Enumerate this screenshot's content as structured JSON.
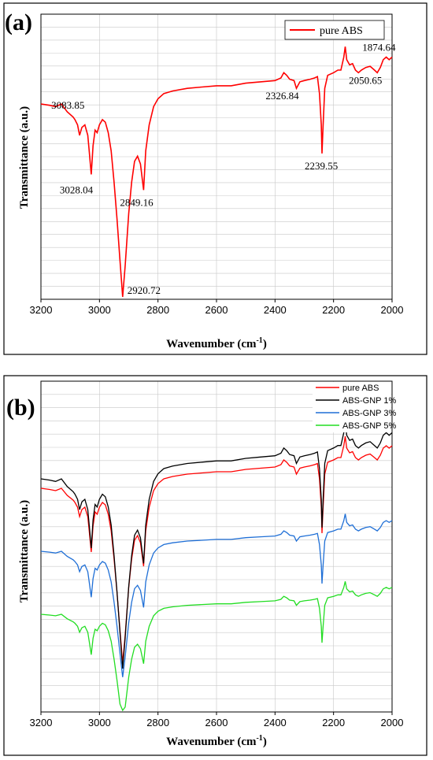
{
  "chart_data": [
    {
      "type": "line",
      "panel_label": "(a)",
      "xlabel": "Wavenumber (cm",
      "xlabel_sup": "-1",
      "xlabel_end": ")",
      "ylabel": "Transmittance (a.u.)",
      "xlim": [
        3200,
        2000
      ],
      "x_ticks": [
        "3200",
        "3000",
        "2800",
        "2600",
        "2400",
        "2200",
        "2000"
      ],
      "legend_position": "top-right",
      "grid": true,
      "series": [
        {
          "name": "pure ABS",
          "color": "#ff0000",
          "points": [
            [
              3200,
              0.74
            ],
            [
              3170,
              0.735
            ],
            [
              3150,
              0.73
            ],
            [
              3130,
              0.74
            ],
            [
              3110,
              0.71
            ],
            [
              3090,
              0.69
            ],
            [
              3083.85,
              0.68
            ],
            [
              3075,
              0.66
            ],
            [
              3068,
              0.62
            ],
            [
              3060,
              0.65
            ],
            [
              3050,
              0.66
            ],
            [
              3040,
              0.62
            ],
            [
              3035,
              0.56
            ],
            [
              3028.04,
              0.47
            ],
            [
              3022,
              0.58
            ],
            [
              3015,
              0.64
            ],
            [
              3008,
              0.63
            ],
            [
              3000,
              0.66
            ],
            [
              2990,
              0.68
            ],
            [
              2980,
              0.67
            ],
            [
              2970,
              0.63
            ],
            [
              2960,
              0.56
            ],
            [
              2950,
              0.44
            ],
            [
              2940,
              0.3
            ],
            [
              2930,
              0.14
            ],
            [
              2920.72,
              0.0
            ],
            [
              2912,
              0.12
            ],
            [
              2900,
              0.32
            ],
            [
              2890,
              0.44
            ],
            [
              2880,
              0.52
            ],
            [
              2870,
              0.54
            ],
            [
              2860,
              0.51
            ],
            [
              2849.16,
              0.41
            ],
            [
              2842,
              0.56
            ],
            [
              2830,
              0.66
            ],
            [
              2815,
              0.73
            ],
            [
              2800,
              0.76
            ],
            [
              2780,
              0.78
            ],
            [
              2750,
              0.79
            ],
            [
              2700,
              0.8
            ],
            [
              2650,
              0.805
            ],
            [
              2600,
              0.81
            ],
            [
              2550,
              0.81
            ],
            [
              2500,
              0.82
            ],
            [
              2450,
              0.825
            ],
            [
              2400,
              0.83
            ],
            [
              2380,
              0.84
            ],
            [
              2370,
              0.86
            ],
            [
              2360,
              0.85
            ],
            [
              2350,
              0.835
            ],
            [
              2335,
              0.83
            ],
            [
              2326.84,
              0.8
            ],
            [
              2315,
              0.825
            ],
            [
              2300,
              0.83
            ],
            [
              2280,
              0.835
            ],
            [
              2265,
              0.84
            ],
            [
              2255,
              0.845
            ],
            [
              2248,
              0.78
            ],
            [
              2242,
              0.66
            ],
            [
              2239.55,
              0.55
            ],
            [
              2236,
              0.65
            ],
            [
              2230,
              0.8
            ],
            [
              2220,
              0.85
            ],
            [
              2200,
              0.86
            ],
            [
              2185,
              0.87
            ],
            [
              2175,
              0.87
            ],
            [
              2165,
              0.92
            ],
            [
              2160,
              0.96
            ],
            [
              2155,
              0.91
            ],
            [
              2145,
              0.89
            ],
            [
              2135,
              0.895
            ],
            [
              2125,
              0.87
            ],
            [
              2115,
              0.86
            ],
            [
              2105,
              0.87
            ],
            [
              2090,
              0.88
            ],
            [
              2075,
              0.885
            ],
            [
              2060,
              0.87
            ],
            [
              2050.65,
              0.86
            ],
            [
              2040,
              0.88
            ],
            [
              2030,
              0.91
            ],
            [
              2020,
              0.92
            ],
            [
              2010,
              0.91
            ],
            [
              2000,
              0.92
            ]
          ]
        }
      ],
      "annotations": [
        {
          "label": "3083.85",
          "x": 3083.85,
          "y": 0.68
        },
        {
          "label": "3028.04",
          "x": 3028.04,
          "y": 0.47
        },
        {
          "label": "2920.72",
          "x": 2920.72,
          "y": 0.0
        },
        {
          "label": "2849.16",
          "x": 2849.16,
          "y": 0.41
        },
        {
          "label": "2326.84",
          "x": 2326.84,
          "y": 0.8
        },
        {
          "label": "2239.55",
          "x": 2239.55,
          "y": 0.55
        },
        {
          "label": "2050.65",
          "x": 2050.65,
          "y": 0.86
        },
        {
          "label": "1874.64",
          "x": 2010,
          "y": 0.92
        }
      ]
    },
    {
      "type": "line",
      "panel_label": "(b)",
      "xlabel": "Wavenumber (cm",
      "xlabel_sup": "-1",
      "xlabel_end": ")",
      "ylabel": "Transmittance (a.u.)",
      "xlim": [
        3200,
        2000
      ],
      "x_ticks": [
        "3200",
        "3000",
        "2800",
        "2600",
        "2400",
        "2200",
        "2000"
      ],
      "legend_position": "top-right",
      "grid": true,
      "series": [
        {
          "name": "pure ABS",
          "color": "#ff0000",
          "offset": 0.0
        },
        {
          "name": "ABS-GNP 1%",
          "color": "#000000",
          "offset": 0.0
        },
        {
          "name": "ABS-GNP 3%",
          "color": "#1f6fd6",
          "offset": 0.0
        },
        {
          "name": "ABS-GNP 5%",
          "color": "#22dd22",
          "offset": 0.0
        }
      ]
    }
  ]
}
